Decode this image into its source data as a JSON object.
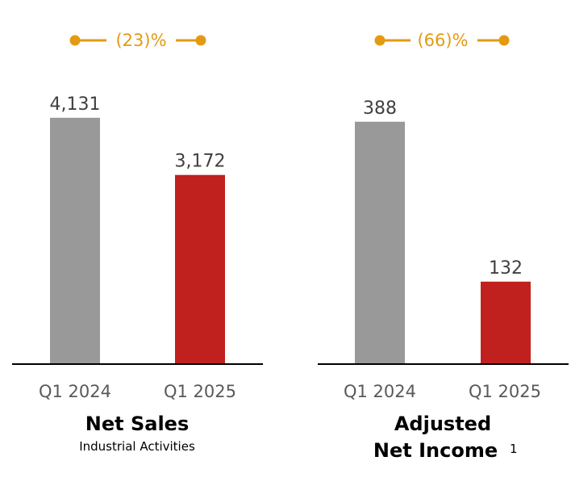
{
  "colors": {
    "prior": "#999999",
    "current": "#C0211E",
    "delta": "#E39A12",
    "axis": "#000000"
  },
  "chart_data": [
    {
      "type": "bar",
      "categories": [
        "Q1 2024",
        "Q1 2025"
      ],
      "values": [
        4131,
        3172
      ],
      "value_labels": [
        "4,131",
        "3,172"
      ],
      "change_label": "(23)%",
      "title": "Net Sales",
      "subtitle": "Industrial Activities",
      "footnote": "",
      "ylim": [
        0,
        4400
      ]
    },
    {
      "type": "bar",
      "categories": [
        "Q1 2024",
        "Q1 2025"
      ],
      "values": [
        388,
        132
      ],
      "value_labels": [
        "388",
        "132"
      ],
      "change_label": "(66)%",
      "title_lines": [
        "Adjusted",
        "Net Income"
      ],
      "footnote": "1",
      "ylim": [
        0,
        420
      ]
    }
  ]
}
